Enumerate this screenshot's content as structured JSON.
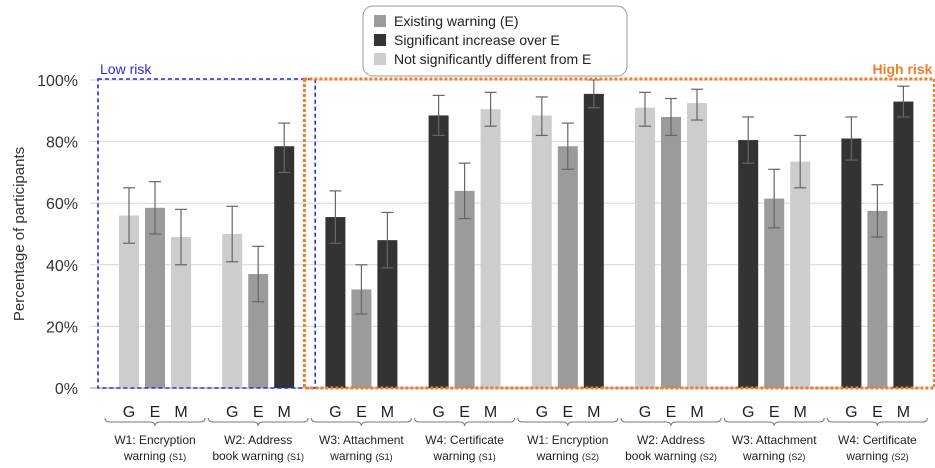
{
  "chart_data": {
    "type": "bar",
    "ylabel": "Percentage of participants",
    "ylim": [
      0,
      100
    ],
    "yticks": [
      0,
      20,
      40,
      60,
      80,
      100
    ],
    "ytick_labels": [
      "0%",
      "20%",
      "40%",
      "60%",
      "80%",
      "100%"
    ],
    "grid": true,
    "legend_position": "top-center",
    "legend": [
      {
        "key": "existing",
        "label": "Existing warning (E)",
        "color": "#9b9b9b"
      },
      {
        "key": "increase",
        "label": "Significant increase over E",
        "color": "#333333"
      },
      {
        "key": "not_sig",
        "label": "Not significantly different from E",
        "color": "#cdcdcd"
      }
    ],
    "regions": [
      {
        "label": "Low risk",
        "color": "#2b2bd6",
        "first_group": 0,
        "last_group": 1
      },
      {
        "label": "High risk",
        "color": "#f07d2b",
        "first_group": 2,
        "last_group": 7
      }
    ],
    "groups": [
      {
        "name": "W1: Encryption",
        "suffix": "warning",
        "scenario": "(S1)",
        "bars": [
          {
            "label": "G",
            "value": 56,
            "err_low": 47,
            "err_high": 65,
            "class": "not_sig"
          },
          {
            "label": "E",
            "value": 58.5,
            "err_low": 50,
            "err_high": 67,
            "class": "existing"
          },
          {
            "label": "M",
            "value": 49,
            "err_low": 40,
            "err_high": 58,
            "class": "not_sig"
          }
        ]
      },
      {
        "name": "W2: Address",
        "suffix": "book warning",
        "scenario": "(S1)",
        "bars": [
          {
            "label": "G",
            "value": 50,
            "err_low": 41,
            "err_high": 59,
            "class": "not_sig"
          },
          {
            "label": "E",
            "value": 37,
            "err_low": 28,
            "err_high": 46,
            "class": "existing"
          },
          {
            "label": "M",
            "value": 78.5,
            "err_low": 70,
            "err_high": 86,
            "class": "increase"
          }
        ]
      },
      {
        "name": "W3: Attachment",
        "suffix": "warning",
        "scenario": "(S1)",
        "bars": [
          {
            "label": "G",
            "value": 55.5,
            "err_low": 47,
            "err_high": 64,
            "class": "increase"
          },
          {
            "label": "E",
            "value": 32,
            "err_low": 24,
            "err_high": 40,
            "class": "existing"
          },
          {
            "label": "M",
            "value": 48,
            "err_low": 39,
            "err_high": 57,
            "class": "increase"
          }
        ]
      },
      {
        "name": "W4: Certificate",
        "suffix": "warning",
        "scenario": "(S1)",
        "bars": [
          {
            "label": "G",
            "value": 88.5,
            "err_low": 82,
            "err_high": 95,
            "class": "increase"
          },
          {
            "label": "E",
            "value": 64,
            "err_low": 55,
            "err_high": 73,
            "class": "existing"
          },
          {
            "label": "M",
            "value": 90.5,
            "err_low": 85,
            "err_high": 96,
            "class": "not_sig"
          }
        ]
      },
      {
        "name": "W1: Encryption",
        "suffix": "warning",
        "scenario": "(S2)",
        "bars": [
          {
            "label": "G",
            "value": 88.5,
            "err_low": 82,
            "err_high": 94.5,
            "class": "not_sig"
          },
          {
            "label": "E",
            "value": 78.5,
            "err_low": 71,
            "err_high": 86,
            "class": "existing"
          },
          {
            "label": "M",
            "value": 95.5,
            "err_low": 91,
            "err_high": 100,
            "class": "increase"
          }
        ]
      },
      {
        "name": "W2: Address",
        "suffix": "book warning",
        "scenario": "(S2)",
        "bars": [
          {
            "label": "G",
            "value": 91,
            "err_low": 85,
            "err_high": 96,
            "class": "not_sig"
          },
          {
            "label": "E",
            "value": 88,
            "err_low": 82,
            "err_high": 94,
            "class": "existing"
          },
          {
            "label": "M",
            "value": 92.5,
            "err_low": 87,
            "err_high": 97,
            "class": "not_sig"
          }
        ]
      },
      {
        "name": "W3: Attachment",
        "suffix": "warning",
        "scenario": "(S2)",
        "bars": [
          {
            "label": "G",
            "value": 80.5,
            "err_low": 73,
            "err_high": 88,
            "class": "increase"
          },
          {
            "label": "E",
            "value": 61.5,
            "err_low": 52,
            "err_high": 71,
            "class": "existing"
          },
          {
            "label": "M",
            "value": 73.5,
            "err_low": 65,
            "err_high": 82,
            "class": "not_sig"
          }
        ]
      },
      {
        "name": "W4: Certificate",
        "suffix": "warning",
        "scenario": "(S2)",
        "bars": [
          {
            "label": "G",
            "value": 81,
            "err_low": 74,
            "err_high": 88,
            "class": "increase"
          },
          {
            "label": "E",
            "value": 57.5,
            "err_low": 49,
            "err_high": 66,
            "class": "existing"
          },
          {
            "label": "M",
            "value": 93,
            "err_low": 88,
            "err_high": 98,
            "class": "increase"
          }
        ]
      }
    ]
  }
}
